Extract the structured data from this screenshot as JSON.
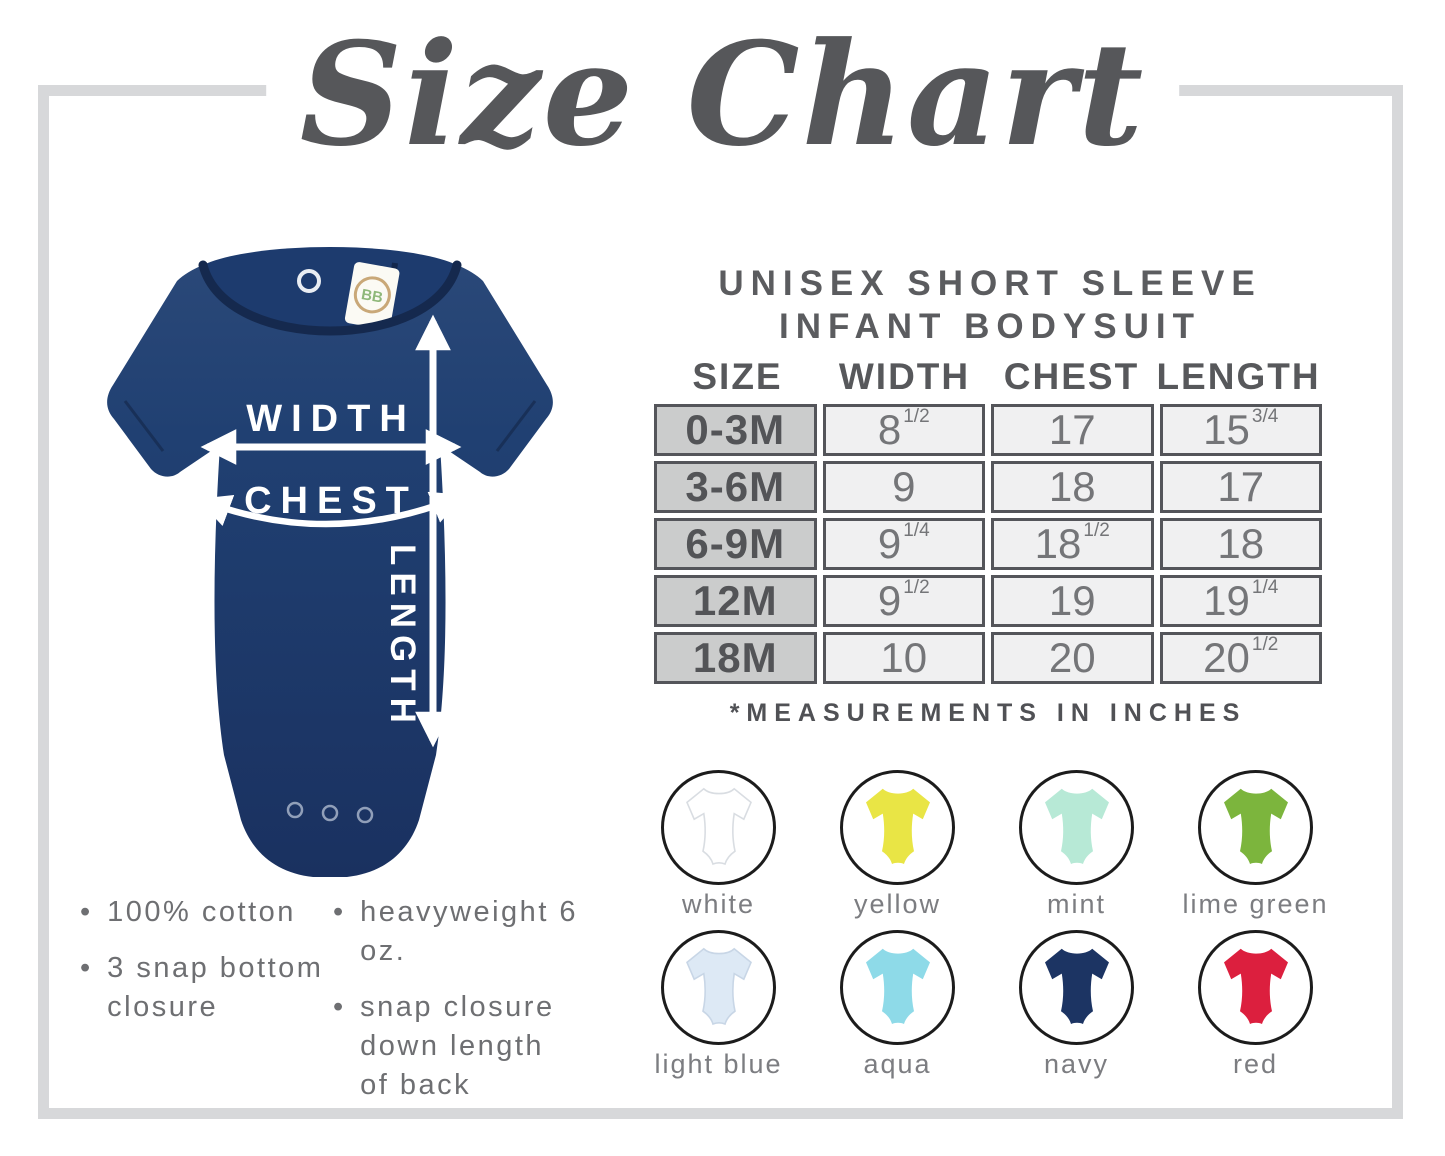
{
  "title": "Size Chart",
  "heading": {
    "line1": "UNISEX SHORT SLEEVE",
    "line2": "INFANT BODYSUIT"
  },
  "table": {
    "columns": [
      "SIZE",
      "WIDTH",
      "CHEST",
      "LENGTH"
    ],
    "rows": [
      {
        "size": "0-3M",
        "cells": [
          {
            "v": "8",
            "f": "1/2"
          },
          {
            "v": "17",
            "f": ""
          },
          {
            "v": "15",
            "f": "3/4"
          }
        ]
      },
      {
        "size": "3-6M",
        "cells": [
          {
            "v": "9",
            "f": ""
          },
          {
            "v": "18",
            "f": ""
          },
          {
            "v": "17",
            "f": ""
          }
        ]
      },
      {
        "size": "6-9M",
        "cells": [
          {
            "v": "9",
            "f": "1/4"
          },
          {
            "v": "18",
            "f": "1/2"
          },
          {
            "v": "18",
            "f": ""
          }
        ]
      },
      {
        "size": "12M",
        "cells": [
          {
            "v": "9",
            "f": "1/2"
          },
          {
            "v": "19",
            "f": ""
          },
          {
            "v": "19",
            "f": "1/4"
          }
        ]
      },
      {
        "size": "18M",
        "cells": [
          {
            "v": "10",
            "f": ""
          },
          {
            "v": "20",
            "f": ""
          },
          {
            "v": "20",
            "f": "1/2"
          }
        ]
      }
    ],
    "footnote": "*MEASUREMENTS IN INCHES"
  },
  "diagram": {
    "width_label": "WIDTH",
    "chest_label": "CHEST",
    "length_label": "LENGTH",
    "tag_logo": "BB",
    "garment_color": "#1d3765"
  },
  "features": {
    "col1": [
      {
        "lines": [
          "100% cotton"
        ]
      },
      {
        "lines": [
          "3 snap bottom",
          "closure"
        ]
      }
    ],
    "col2": [
      {
        "lines": [
          "heavyweight 6 oz."
        ]
      },
      {
        "lines": [
          "snap closure",
          "down length",
          "of back"
        ]
      }
    ]
  },
  "swatches": [
    {
      "name": "white",
      "hex": "#ffffff",
      "outline": "#d9dde2"
    },
    {
      "name": "yellow",
      "hex": "#e9e545",
      "outline": "none"
    },
    {
      "name": "mint",
      "hex": "#b7e9d6",
      "outline": "none"
    },
    {
      "name": "lime green",
      "hex": "#7cb53d",
      "outline": "none"
    },
    {
      "name": "light blue",
      "hex": "#dde9f5",
      "outline": "#c8d6e6"
    },
    {
      "name": "aqua",
      "hex": "#8edae8",
      "outline": "none"
    },
    {
      "name": "navy",
      "hex": "#1c3463",
      "outline": "none"
    },
    {
      "name": "red",
      "hex": "#dc1f3e",
      "outline": "none"
    }
  ]
}
